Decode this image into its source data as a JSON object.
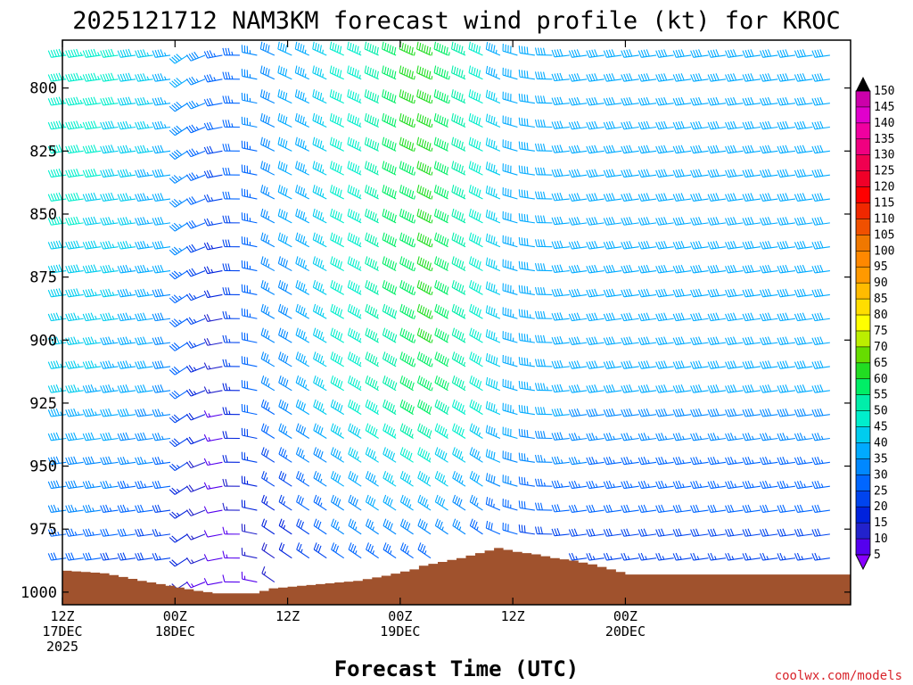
{
  "chart_data": {
    "type": "wind-barb-profile",
    "title": "2025121712 NAM3KM forecast wind profile (kt) for KROC",
    "xlabel": "Forecast Time (UTC)",
    "ylabel": "",
    "credit": "coolwx.com/models",
    "x_range_hours": [
      0,
      84
    ],
    "x_ticks": [
      {
        "hour": 0,
        "line1": "12Z",
        "line2": "17DEC",
        "line3": "2025"
      },
      {
        "hour": 12,
        "line1": "00Z",
        "line2": "18DEC",
        "line3": ""
      },
      {
        "hour": 24,
        "line1": "12Z",
        "line2": "",
        "line3": ""
      },
      {
        "hour": 36,
        "line1": "00Z",
        "line2": "19DEC",
        "line3": ""
      },
      {
        "hour": 48,
        "line1": "12Z",
        "line2": "",
        "line3": ""
      },
      {
        "hour": 60,
        "line1": "00Z",
        "line2": "20DEC",
        "line3": ""
      }
    ],
    "y_ticks": [
      "800",
      "825",
      "850",
      "875",
      "900",
      "925",
      "950",
      "975",
      "1000"
    ],
    "y_range_hpa": [
      781,
      1005
    ],
    "terrain_color": "#a0522d",
    "surface_pressure_hpa": [
      [
        0,
        991.5
      ],
      [
        4,
        992.5
      ],
      [
        8,
        995.5
      ],
      [
        11,
        997.5
      ],
      [
        14,
        999.5
      ],
      [
        16,
        1000.5
      ],
      [
        18,
        1000.5
      ],
      [
        20,
        1000.5
      ],
      [
        22,
        998.5
      ],
      [
        25,
        997.5
      ],
      [
        28,
        996.5
      ],
      [
        31,
        995.5
      ],
      [
        34,
        993.5
      ],
      [
        37,
        991
      ],
      [
        38,
        989.5
      ],
      [
        40,
        988
      ],
      [
        42,
        986.5
      ],
      [
        43,
        985.5
      ],
      [
        44,
        984.5
      ],
      [
        45,
        983.5
      ],
      [
        46,
        982.5
      ],
      [
        48,
        984
      ],
      [
        50,
        985
      ],
      [
        52,
        986.5
      ],
      [
        54,
        987.5
      ],
      [
        56,
        989
      ],
      [
        58,
        991
      ],
      [
        60,
        993
      ]
    ],
    "colorbar": {
      "levels": [
        "150",
        "145",
        "140",
        "135",
        "130",
        "125",
        "120",
        "115",
        "110",
        "105",
        "100",
        "95",
        "90",
        "85",
        "80",
        "75",
        "70",
        "65",
        "60",
        "55",
        "50",
        "45",
        "40",
        "35",
        "30",
        "25",
        "20",
        "15",
        "10",
        "5"
      ],
      "colors": [
        "#cc00aa",
        "#e000cc",
        "#f000a0",
        "#f00080",
        "#f00050",
        "#f00028",
        "#ff0000",
        "#f02800",
        "#f05000",
        "#f07800",
        "#ff8800",
        "#ff9900",
        "#ffbb00",
        "#ffdd00",
        "#ffff00",
        "#bbee00",
        "#66dd00",
        "#22dd22",
        "#00ee66",
        "#00eeaa",
        "#00eecc",
        "#00ccee",
        "#00aaff",
        "#0088ff",
        "#0066ff",
        "#0044ee",
        "#0022dd",
        "#2222cc",
        "#5500ee",
        "#8800ff"
      ]
    },
    "wind_regime_note": "speed (kt) and direction (deg) sampled per hour/level",
    "speed_samples_kt": [
      {
        "hour": 3,
        "low": 30,
        "mid": 45,
        "high": 55
      },
      {
        "hour": 11,
        "low": 25,
        "mid": 40,
        "high": 45
      },
      {
        "hour": 17,
        "low": 10,
        "mid": 15,
        "high": 35
      },
      {
        "hour": 20,
        "low": 12,
        "mid": 30,
        "high": 35
      },
      {
        "hour": 30,
        "low": 30,
        "mid": 50,
        "high": 50
      },
      {
        "hour": 39,
        "low": 30,
        "mid": 65,
        "high": 70
      },
      {
        "hour": 48,
        "low": 25,
        "mid": 45,
        "high": 40
      },
      {
        "hour": 57,
        "low": 25,
        "mid": 40,
        "high": 40
      }
    ]
  }
}
